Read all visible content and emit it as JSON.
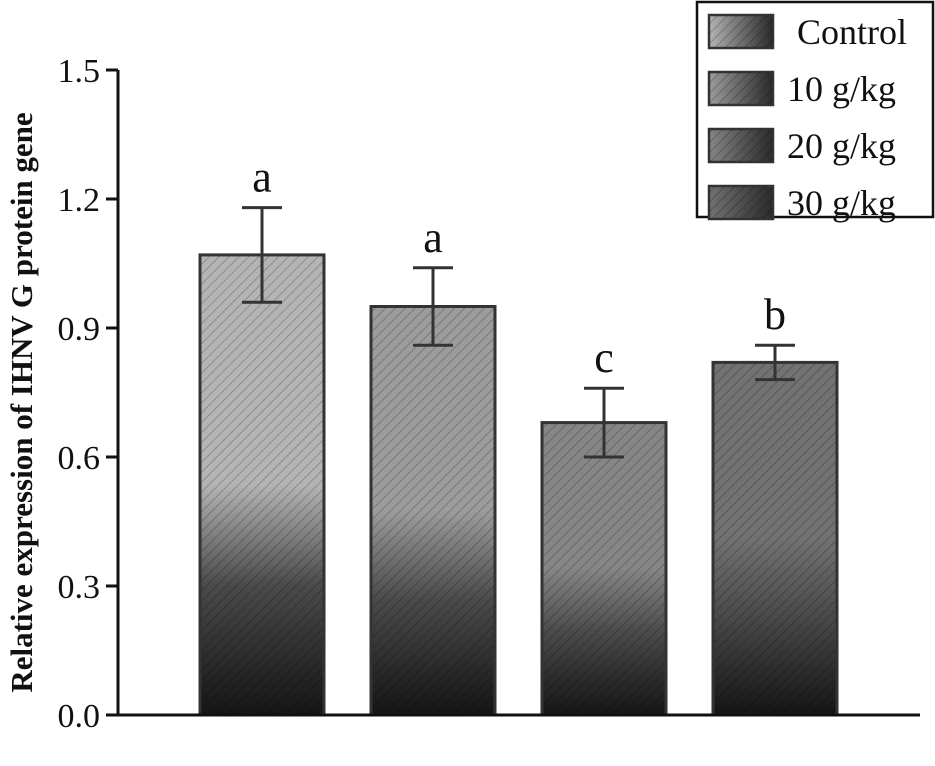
{
  "chart_data": {
    "type": "bar",
    "categories": [
      "Control",
      "10 g/kg",
      "20 g/kg",
      "30 g/kg"
    ],
    "values": [
      1.07,
      0.95,
      0.68,
      0.82
    ],
    "errors": [
      0.11,
      0.09,
      0.08,
      0.04
    ],
    "significance": [
      "a",
      "a",
      "c",
      "b"
    ],
    "title": "",
    "xlabel": "",
    "ylabel": "Relative expression of IHNV G protein gene",
    "ylim": [
      0,
      1.5
    ],
    "yticks": [
      "0.0",
      "0.3",
      "0.6",
      "0.9",
      "1.2",
      "1.5"
    ],
    "legend": {
      "position": "top-right",
      "entries": [
        "Control",
        "10 g/kg",
        "20 g/kg",
        "30 g/kg"
      ]
    },
    "grid": false,
    "bar_colors": [
      "#b4b4b4",
      "#9c9c9c",
      "#868686",
      "#727272"
    ],
    "bar_shade": "#151515",
    "axis_color": "#111111"
  }
}
